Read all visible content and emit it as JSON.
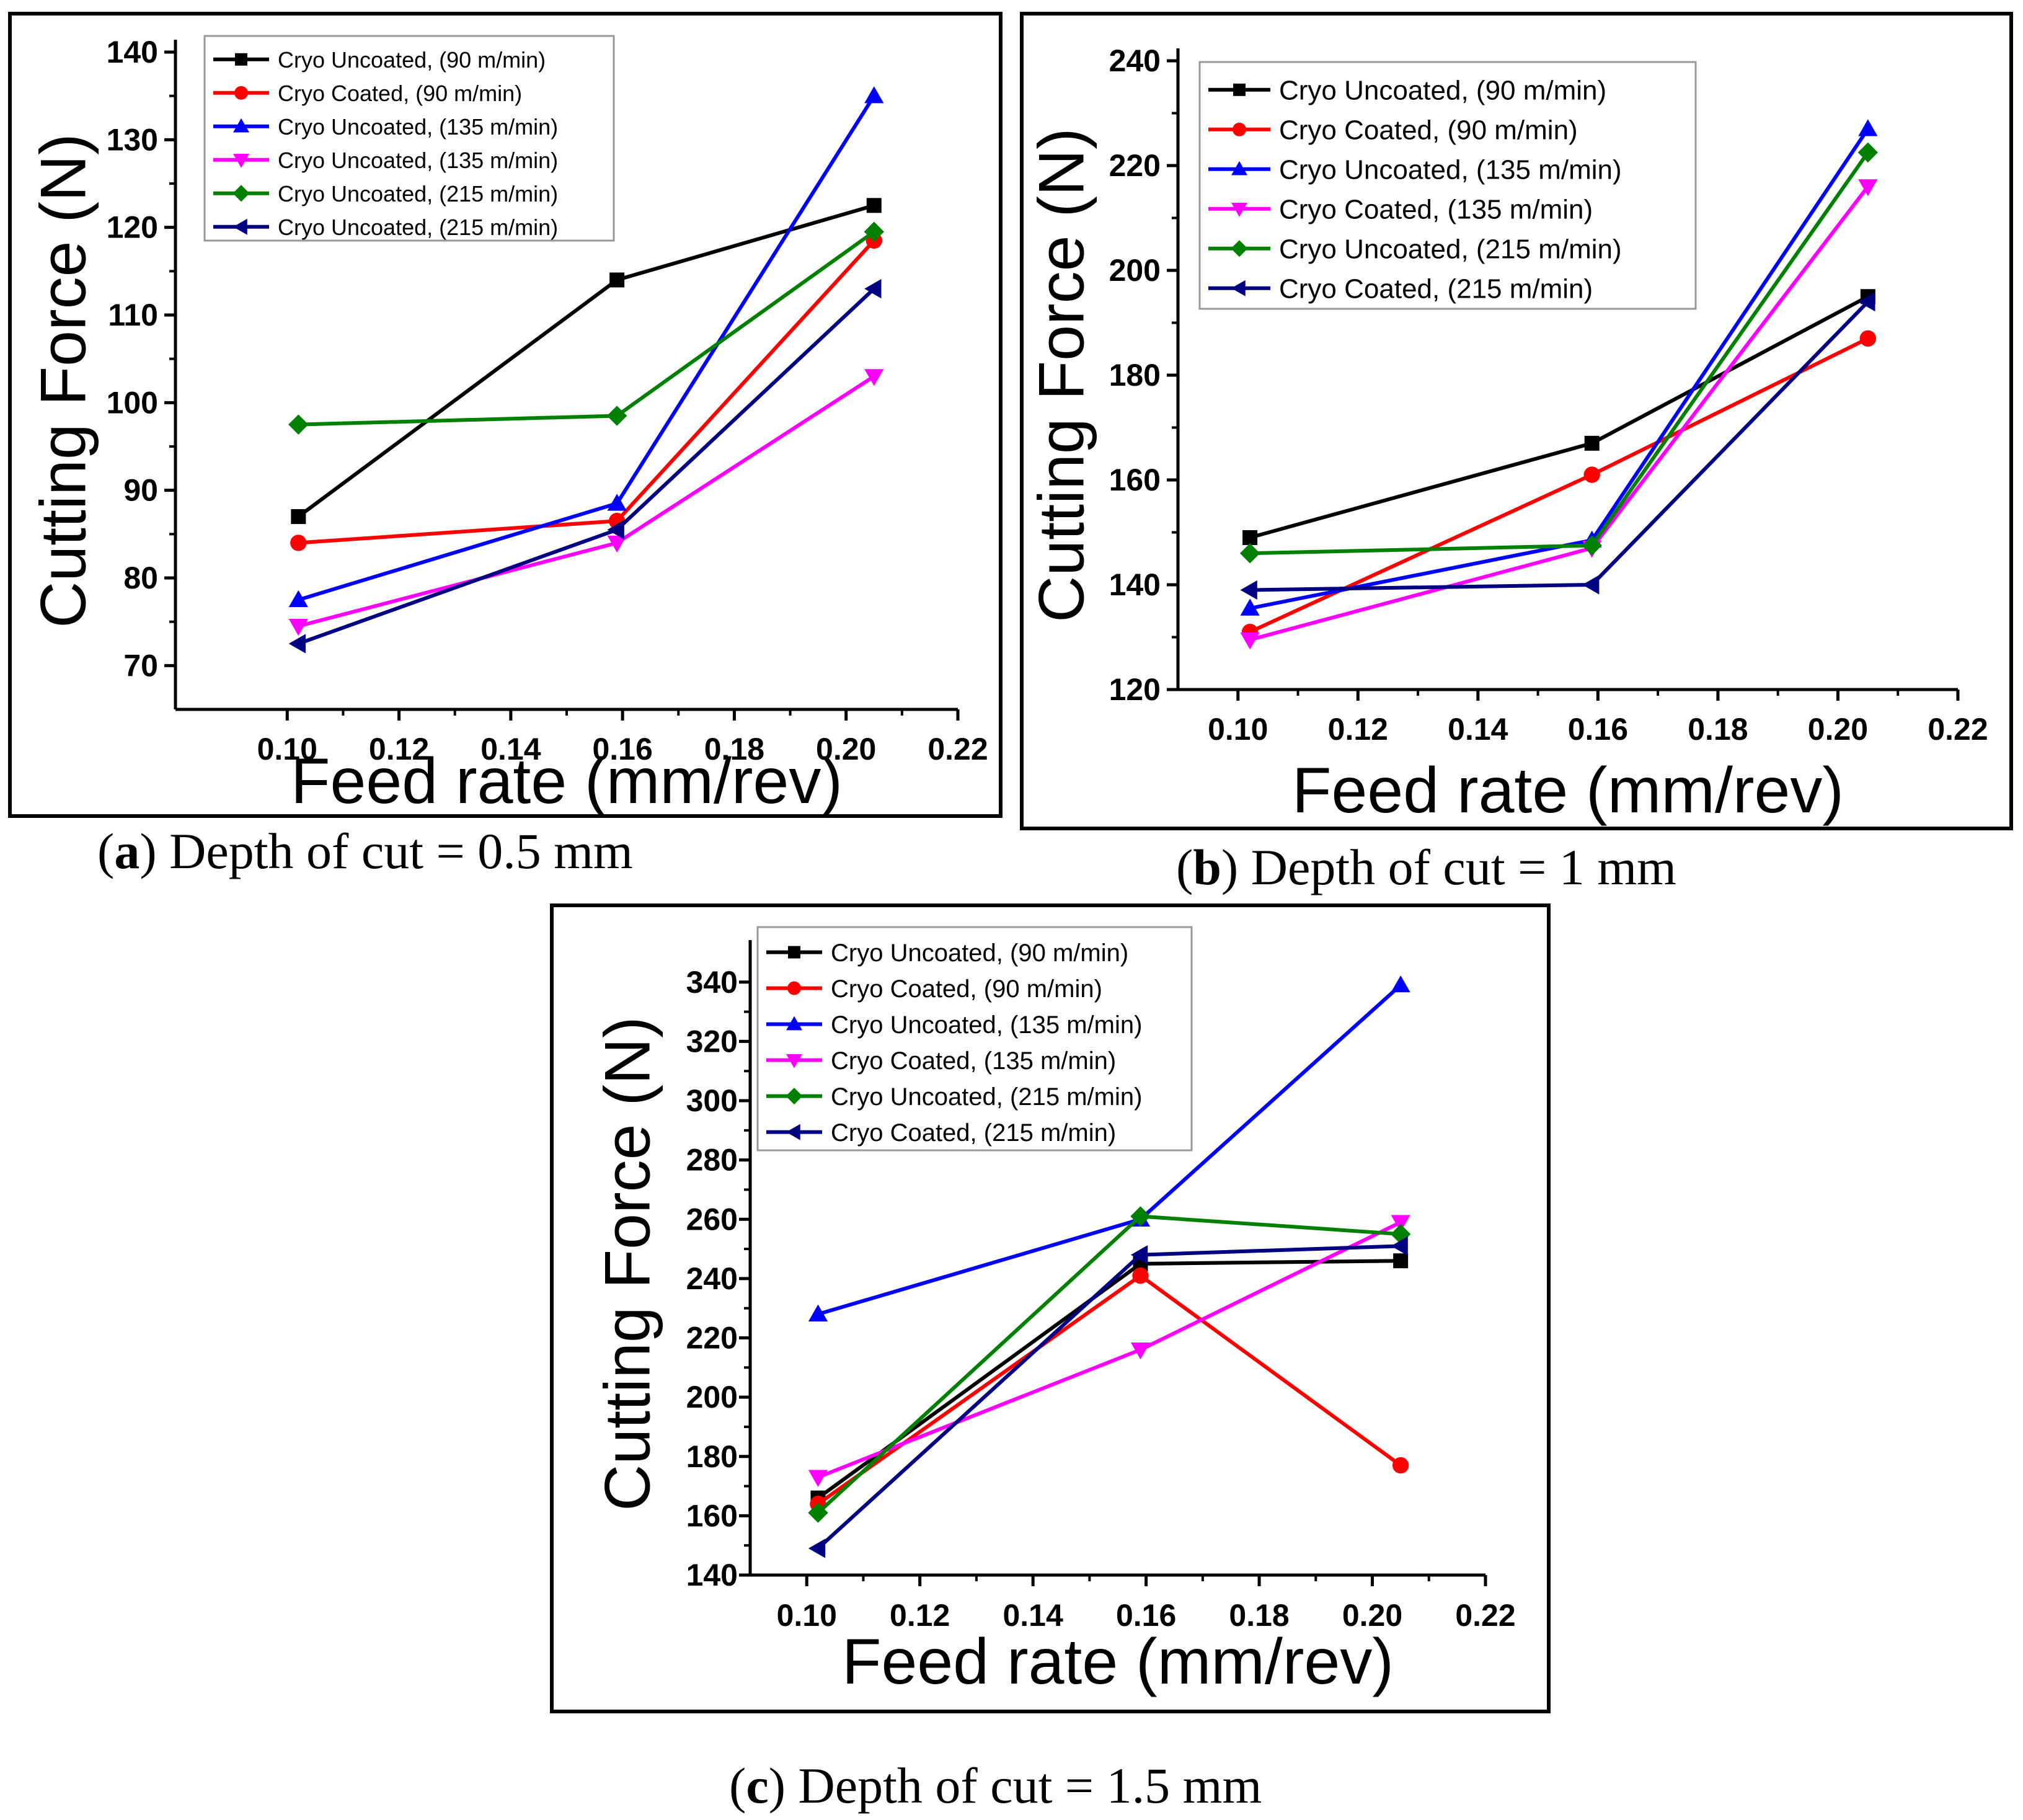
{
  "chart_data": [
    {
      "id": "a",
      "type": "line",
      "caption_letter": "a",
      "caption_text": "Depth of cut = 0.5 mm",
      "xlabel": "Feed rate (mm/rev)",
      "ylabel": "Cutting Force (N)",
      "xlim": [
        0.08,
        0.22
      ],
      "ylim": [
        65,
        140
      ],
      "xticks": [
        "0.10",
        "0.12",
        "0.14",
        "0.16",
        "0.18",
        "0.20",
        "0.22"
      ],
      "yticks": [
        "70",
        "80",
        "90",
        "100",
        "110",
        "120",
        "130",
        "140"
      ],
      "x": [
        0.102,
        0.159,
        0.205
      ],
      "legend_position": "top-left",
      "series": [
        {
          "name": "Cryo Uncoated, (90 m/min)",
          "color": "#000000",
          "marker": "square",
          "values": [
            87,
            114,
            122.5
          ]
        },
        {
          "name": "Cryo Coated, (90 m/min)",
          "color": "#ff0000",
          "marker": "circle",
          "values": [
            84,
            86.5,
            118.5
          ]
        },
        {
          "name": "Cryo Uncoated, (135 m/min)",
          "color": "#0000ff",
          "marker": "triangle-up",
          "values": [
            77.5,
            88.5,
            135
          ]
        },
        {
          "name": "Cryo Uncoated, (135 m/min)",
          "color": "#ff00ff",
          "marker": "triangle-down",
          "values": [
            74.5,
            84,
            103
          ]
        },
        {
          "name": "Cryo Uncoated, (215 m/min)",
          "color": "#008000",
          "marker": "diamond",
          "values": [
            97.5,
            98.5,
            119.5
          ]
        },
        {
          "name": "Cryo Uncoated, (215 m/min)",
          "color": "#000080",
          "marker": "triangle-left",
          "values": [
            72.5,
            85.5,
            113
          ]
        }
      ]
    },
    {
      "id": "b",
      "type": "line",
      "caption_letter": "b",
      "caption_text": "Depth of cut = 1 mm",
      "xlabel": "Feed rate (mm/rev)",
      "ylabel": "Cutting Force (N)",
      "xlim": [
        0.09,
        0.22
      ],
      "ylim": [
        120,
        240
      ],
      "xticks": [
        "0.10",
        "0.12",
        "0.14",
        "0.16",
        "0.18",
        "0.20",
        "0.22"
      ],
      "yticks": [
        "120",
        "140",
        "160",
        "180",
        "200",
        "220",
        "240"
      ],
      "x": [
        0.102,
        0.159,
        0.205
      ],
      "legend_position": "top-left",
      "series": [
        {
          "name": "Cryo Uncoated, (90 m/min)",
          "color": "#000000",
          "marker": "square",
          "values": [
            149,
            167,
            195
          ]
        },
        {
          "name": "Cryo Coated, (90 m/min)",
          "color": "#ff0000",
          "marker": "circle",
          "values": [
            131,
            161,
            187
          ]
        },
        {
          "name": "Cryo Uncoated, (135 m/min)",
          "color": "#0000ff",
          "marker": "triangle-up",
          "values": [
            135.5,
            148.5,
            227
          ]
        },
        {
          "name": "Cryo Coated, (135 m/min)",
          "color": "#ff00ff",
          "marker": "triangle-down",
          "values": [
            129.5,
            147,
            216
          ]
        },
        {
          "name": "Cryo Uncoated, (215 m/min)",
          "color": "#008000",
          "marker": "diamond",
          "values": [
            146,
            147.5,
            222.5
          ]
        },
        {
          "name": "Cryo  Coated, (215 m/min)",
          "color": "#000080",
          "marker": "triangle-left",
          "values": [
            139,
            140,
            194
          ]
        }
      ]
    },
    {
      "id": "c",
      "type": "line",
      "caption_letter": "c",
      "caption_text": "Depth of cut = 1.5 mm",
      "xlabel": "Feed rate (mm/rev)",
      "ylabel": "Cutting Force (N)",
      "xlim": [
        0.09,
        0.22
      ],
      "ylim": [
        140,
        350
      ],
      "xticks": [
        "0.10",
        "0.12",
        "0.14",
        "0.16",
        "0.18",
        "0.20",
        "0.22"
      ],
      "yticks": [
        "140",
        "160",
        "180",
        "200",
        "220",
        "240",
        "260",
        "280",
        "300",
        "320",
        "340"
      ],
      "x": [
        0.102,
        0.159,
        0.205
      ],
      "legend_position": "top-left",
      "series": [
        {
          "name": "Cryo Uncoated, (90 m/min)",
          "color": "#000000",
          "marker": "square",
          "values": [
            166,
            245,
            246
          ]
        },
        {
          "name": "Cryo Coated, (90 m/min)",
          "color": "#ff0000",
          "marker": "circle",
          "values": [
            164,
            241,
            177
          ]
        },
        {
          "name": "Cryo Uncoated, (135 m/min)",
          "color": "#0000ff",
          "marker": "triangle-up",
          "values": [
            228,
            260,
            339
          ]
        },
        {
          "name": "Cryo Coated, (135 m/min)",
          "color": "#ff00ff",
          "marker": "triangle-down",
          "values": [
            173,
            216,
            259
          ]
        },
        {
          "name": "Cryo Uncoated, (215 m/min)",
          "color": "#008000",
          "marker": "diamond",
          "values": [
            161,
            261,
            255
          ]
        },
        {
          "name": "Cryo Coated, (215 m/min)",
          "color": "#000080",
          "marker": "triangle-left",
          "values": [
            149,
            248,
            251
          ]
        }
      ]
    }
  ]
}
